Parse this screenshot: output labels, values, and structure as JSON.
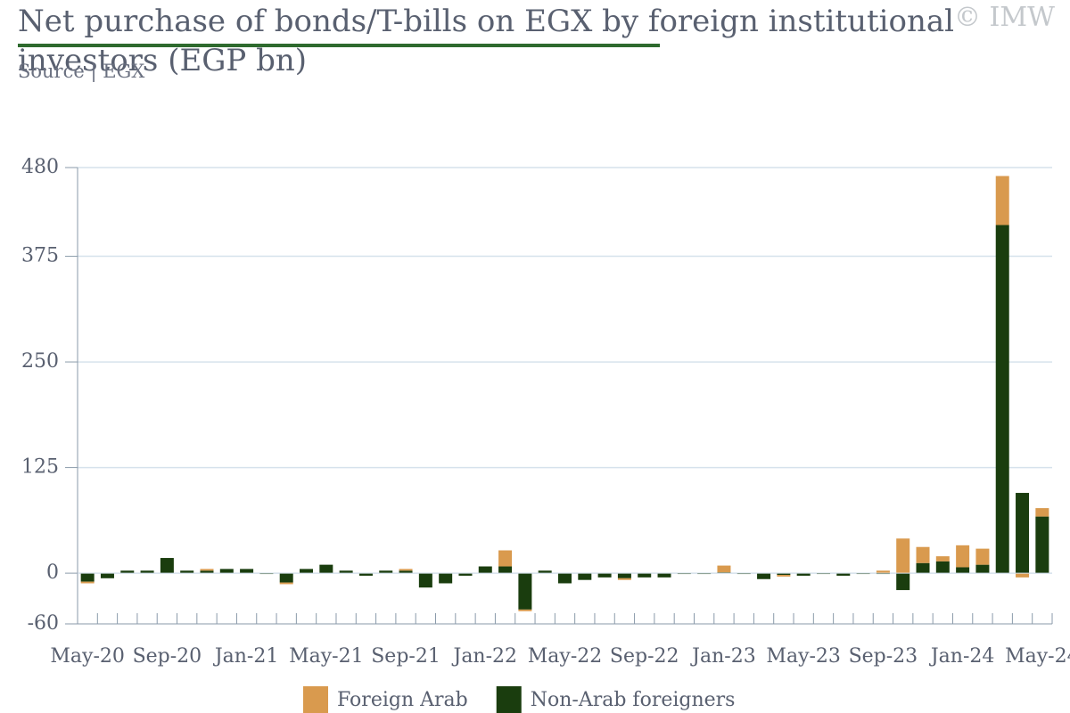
{
  "chart_data": {
    "type": "stacked_bar",
    "title": "Net purchase of bonds/T-bills on EGX by foreign institutional investors (EGP bn)",
    "subtitle": "Source | EGX",
    "watermark": "© IMW",
    "categories": [
      "May-20",
      null,
      null,
      null,
      "Sep-20",
      null,
      null,
      null,
      "Jan-21",
      null,
      null,
      null,
      "May-21",
      null,
      null,
      null,
      "Sep-21",
      null,
      null,
      null,
      "Jan-22",
      null,
      null,
      null,
      "May-22",
      null,
      null,
      null,
      "Sep-22",
      null,
      null,
      null,
      "Jan-23",
      null,
      null,
      null,
      "May-23",
      null,
      null,
      null,
      "Sep-23",
      null,
      null,
      null,
      "Jan-24",
      null,
      null,
      null,
      "May-24"
    ],
    "series": [
      {
        "name": "Foreign Arab",
        "color": "#d99a4e",
        "values": [
          -2,
          0,
          0,
          0,
          0,
          0,
          2,
          0,
          0,
          0,
          -2,
          0,
          0,
          0,
          0,
          0,
          2,
          0,
          0,
          0,
          0,
          19,
          -2,
          0,
          0,
          0,
          0,
          -2,
          0,
          0,
          0,
          0,
          8,
          0,
          0,
          -2,
          0,
          0,
          0,
          0,
          3,
          41,
          19,
          6,
          26,
          19,
          58,
          -5,
          10
        ]
      },
      {
        "name": "Non-Arab foreigners",
        "color": "#1a3d0e",
        "values": [
          -10,
          -6,
          3,
          3,
          18,
          3,
          3,
          5,
          5,
          -1,
          -11,
          5,
          10,
          3,
          -3,
          3,
          3,
          -17,
          -12,
          -3,
          8,
          8,
          -43,
          3,
          -12,
          -8,
          -5,
          -6,
          -5,
          -5,
          -1,
          -1,
          1,
          -1,
          -7,
          -2,
          -3,
          -1,
          -3,
          -1,
          -1,
          -20,
          12,
          14,
          7,
          10,
          412,
          95,
          67
        ]
      }
    ],
    "ylim": [
      -60,
      480
    ],
    "yticks": [
      -60,
      0,
      125,
      250,
      375,
      480
    ],
    "grid": true
  }
}
